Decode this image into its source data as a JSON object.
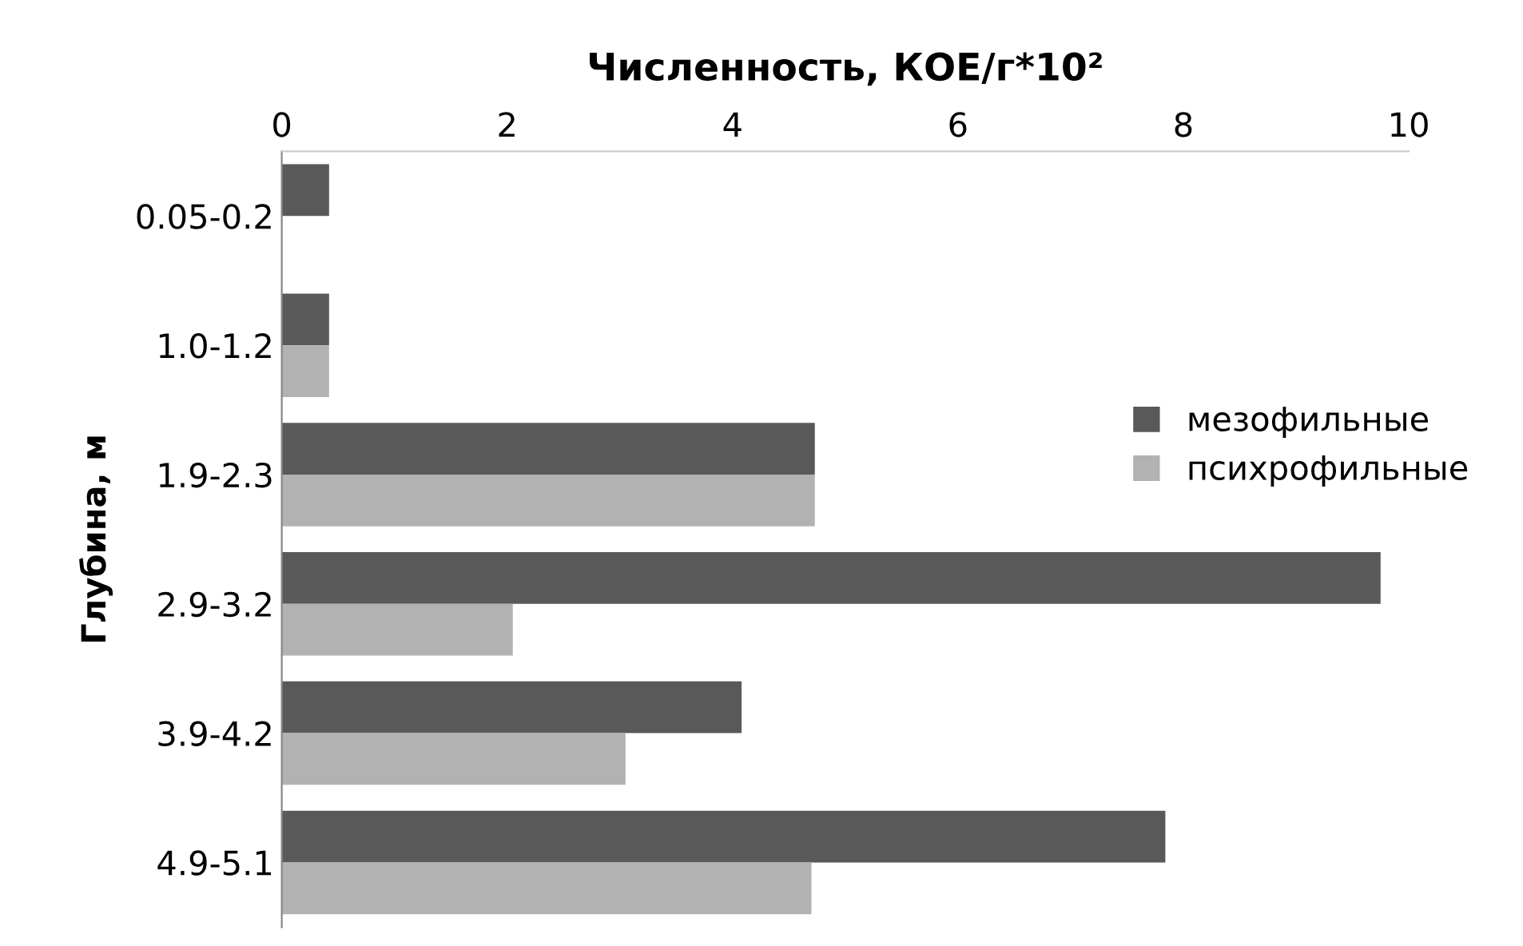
{
  "chart_data": {
    "type": "bar",
    "orientation": "horizontal",
    "xlabel": "Численность, КОЕ/г*10²",
    "ylabel": "Глубина, м",
    "categories": [
      "0.05-0.2",
      "1.0-1.2",
      "1.9-2.3",
      "2.9-3.2",
      "3.9-4.2",
      "4.9-5.1"
    ],
    "series": [
      {
        "name": "мезофильные",
        "color": "#595959",
        "values": [
          0.42,
          0.42,
          4.73,
          9.75,
          4.08,
          7.84
        ]
      },
      {
        "name": "психрофильные",
        "color": "#b2b2b2",
        "values": [
          0,
          0.42,
          4.73,
          2.05,
          3.05,
          4.7
        ]
      }
    ],
    "xlim": [
      0,
      10
    ],
    "xticks": [
      0,
      2,
      4,
      6,
      8,
      10
    ],
    "grid": false,
    "legend": "right"
  }
}
